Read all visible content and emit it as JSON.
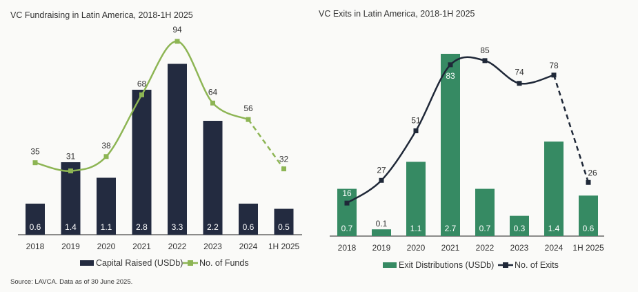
{
  "source": "Source: LAVCA. Data as of 30 June 2025.",
  "colors": {
    "navy": "#232b40",
    "lime": "#8db554",
    "teal": "#368a63",
    "dark": "#1f2838"
  },
  "chart_data": [
    {
      "type": "bar+line",
      "title": "VC Fundraising in Latin America, 2018-1H 2025",
      "categories": [
        "2018",
        "2019",
        "2020",
        "2021",
        "2022",
        "2023",
        "2024",
        "1H 2025"
      ],
      "series": [
        {
          "name": "Capital Raised (USDb)",
          "type": "bar",
          "values": [
            0.6,
            1.4,
            1.1,
            2.8,
            3.3,
            2.2,
            0.6,
            0.5
          ],
          "labels": [
            "0.6",
            "1.4",
            "1.1",
            "2.8",
            "3.3",
            "2.2",
            "0.6",
            "0.5"
          ]
        },
        {
          "name": "No. of Funds",
          "type": "line",
          "values": [
            35,
            31,
            38,
            68,
            94,
            64,
            56,
            32
          ],
          "labels": [
            "35",
            "31",
            "38",
            "68",
            "94",
            "64",
            "56",
            "32"
          ],
          "dashed_last_segment": true
        }
      ],
      "legend": "bottom"
    },
    {
      "type": "bar+line",
      "title": "VC Exits in Latin America, 2018-1H 2025",
      "categories": [
        "2018",
        "2019",
        "2020",
        "2021",
        "2022",
        "2023",
        "2024",
        "1H 2025"
      ],
      "series": [
        {
          "name": "Exit Distributions (USDb)",
          "type": "bar",
          "values": [
            0.7,
            0.1,
            1.1,
            2.7,
            0.7,
            0.3,
            1.4,
            0.6
          ],
          "labels": [
            "0.7",
            "0.1",
            "1.1",
            "2.7",
            "0.7",
            "0.3",
            "1.4",
            "0.6"
          ]
        },
        {
          "name": "No. of Exits",
          "type": "line",
          "values": [
            16,
            27,
            51,
            83,
            85,
            74,
            78,
            26
          ],
          "labels": [
            "16",
            "27",
            "51",
            "83",
            "85",
            "74",
            "78",
            "26"
          ],
          "dashed_last_segment": true
        }
      ],
      "legend": "bottom"
    }
  ]
}
